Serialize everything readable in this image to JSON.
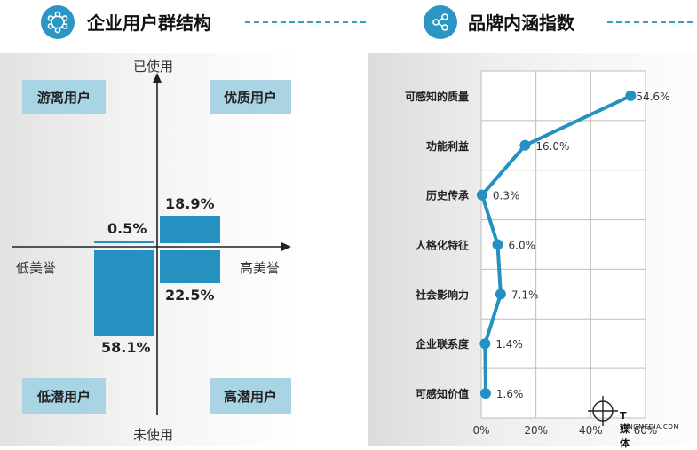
{
  "left_header": {
    "title": "企业用户群结构",
    "icon": "network-hexagon-icon"
  },
  "right_header": {
    "title": "品牌内涵指数",
    "icon": "share-icon"
  },
  "accent_color": "#2b96c4",
  "bar_color": "#2591c0",
  "quadrant_color": "#a9d4e4",
  "quadrant": {
    "top_left": "游离用户",
    "top_right": "优质用户",
    "bottom_left": "低潜用户",
    "bottom_right": "高潜用户",
    "axis_top": "已使用",
    "axis_bottom": "未使用",
    "axis_left": "低美誉",
    "axis_right": "高美誉"
  },
  "watermark": {
    "main": "T媒体",
    "sub": "TANGMEDIA.COM"
  },
  "chart_data": [
    {
      "type": "bar",
      "title": "企业用户群结构",
      "categories": [
        "游离用户",
        "优质用户",
        "低潜用户",
        "高潜用户"
      ],
      "values": [
        0.5,
        18.9,
        58.1,
        22.5
      ],
      "value_labels": [
        "0.5%",
        "18.9%",
        "58.1%",
        "22.5%"
      ],
      "unit": "%"
    },
    {
      "type": "line",
      "title": "品牌内涵指数",
      "categories": [
        "可感知的质量",
        "功能利益",
        "历史传承",
        "人格化特征",
        "社会影响力",
        "企业联系度",
        "可感知价值"
      ],
      "values": [
        54.6,
        16.0,
        0.3,
        6.0,
        7.1,
        1.4,
        1.6
      ],
      "value_labels": [
        "54.6%",
        "16.0%",
        "0.3%",
        "6.0%",
        "7.1%",
        "1.4%",
        "1.6%"
      ],
      "x_ticks": [
        "0%",
        "20%",
        "40%",
        "60%"
      ],
      "xlim": [
        0,
        60
      ],
      "grid": true
    }
  ]
}
